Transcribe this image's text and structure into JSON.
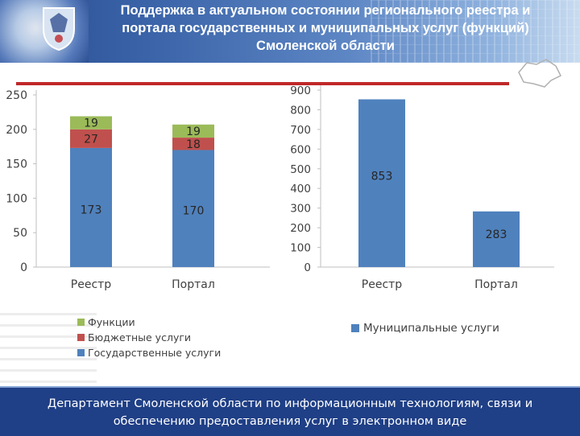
{
  "header": {
    "title_line1": "Поддержка в актуальном состоянии регионального реестра и",
    "title_line2": "портала государственных и муниципальных услуг (функций)",
    "title_line3": "Смоленской области"
  },
  "colors": {
    "header_bg": "#3a63a8",
    "accent_red": "#c0282a",
    "footer_bg": "#1f3f86"
  },
  "icons": [
    "coat-of-arms-icon",
    "region-map-icon"
  ],
  "footer": {
    "line1": "Департамент Смоленской области по информационным технологиям, связи и",
    "line2": "обеспечению предоставления услуг в электронном виде"
  },
  "chart_data": [
    {
      "type": "bar",
      "stacked": true,
      "categories": [
        "Реестр",
        "Портал"
      ],
      "series": [
        {
          "name": "Государственные услуги",
          "values": [
            173,
            170
          ],
          "color": "#4f81bd"
        },
        {
          "name": "Бюджетные услуги",
          "values": [
            27,
            18
          ],
          "color": "#c0504d"
        },
        {
          "name": "Функции",
          "values": [
            19,
            19
          ],
          "color": "#9bbb59"
        }
      ],
      "ylim": [
        0,
        250
      ],
      "yticks": [
        "0",
        "50",
        "100",
        "150",
        "200",
        "250"
      ],
      "grid": false,
      "legend_position": "bottom",
      "legend_entries": [
        "Функции",
        "Бюджетные услуги",
        "Государственные услуги"
      ]
    },
    {
      "type": "bar",
      "categories": [
        "Реестр",
        "Портал"
      ],
      "series": [
        {
          "name": "Муниципальные услуги",
          "values": [
            853,
            283
          ],
          "color": "#4f81bd"
        }
      ],
      "ylim": [
        0,
        900
      ],
      "yticks": [
        "0",
        "100",
        "200",
        "300",
        "400",
        "500",
        "600",
        "700",
        "800",
        "900"
      ],
      "grid": false,
      "legend_position": "bottom",
      "legend_entries": [
        "Муниципальные услуги"
      ]
    }
  ]
}
